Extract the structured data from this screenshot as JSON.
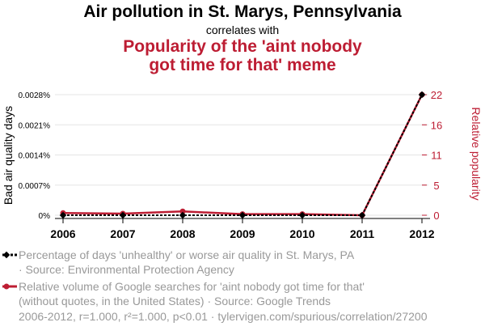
{
  "header": {
    "title": "Air pollution in St. Marys, Pennsylvania",
    "connector": "correlates with",
    "subtitle_line1": "Popularity of the 'aint nobody",
    "subtitle_line2": "got time for that' meme"
  },
  "colors": {
    "series1": "#000000",
    "series2": "#bd1d33",
    "legend_text": "#999999"
  },
  "legend": {
    "series1_line1": "Percentage of days 'unhealthy' or worse air quality in St. Marys, PA",
    "series1_line2": "· Source: Environmental Protection Agency",
    "series2_line1": "Relative volume of Google searches for 'aint nobody got time for that'",
    "series2_line2": "(without quotes, in the United States) · Source: Google Trends"
  },
  "footer": {
    "text": "2006-2012, r=1.000, r²=1.000, p<0.01 · tylervigen.com/spurious/correlation/27200"
  },
  "chart_data": {
    "type": "line",
    "categories": [
      "2006",
      "2007",
      "2008",
      "2009",
      "2010",
      "2011",
      "2012"
    ],
    "series": [
      {
        "name": "Percentage of days 'unhealthy' or worse air quality in St. Marys, PA",
        "axis": "left",
        "values": [
          0,
          0,
          0,
          0,
          0,
          0,
          0.0028
        ]
      },
      {
        "name": "Relative volume of Google searches for 'aint nobody got time for that'",
        "axis": "right",
        "values": [
          0.4,
          0.3,
          0.7,
          0.2,
          0.2,
          0,
          22
        ]
      }
    ],
    "ylabel_left": "Bad air quality days",
    "ylabel_right": "Relative popularity",
    "ylim_left": [
      0,
      0.0028
    ],
    "ylim_right": [
      0,
      22
    ],
    "left_ticks": [
      "0%",
      "0.0007%",
      "0.0014%",
      "0.0021%",
      "0.0028%"
    ],
    "right_ticks": [
      "0",
      "5",
      "11",
      "16",
      "22"
    ],
    "grid": true
  }
}
